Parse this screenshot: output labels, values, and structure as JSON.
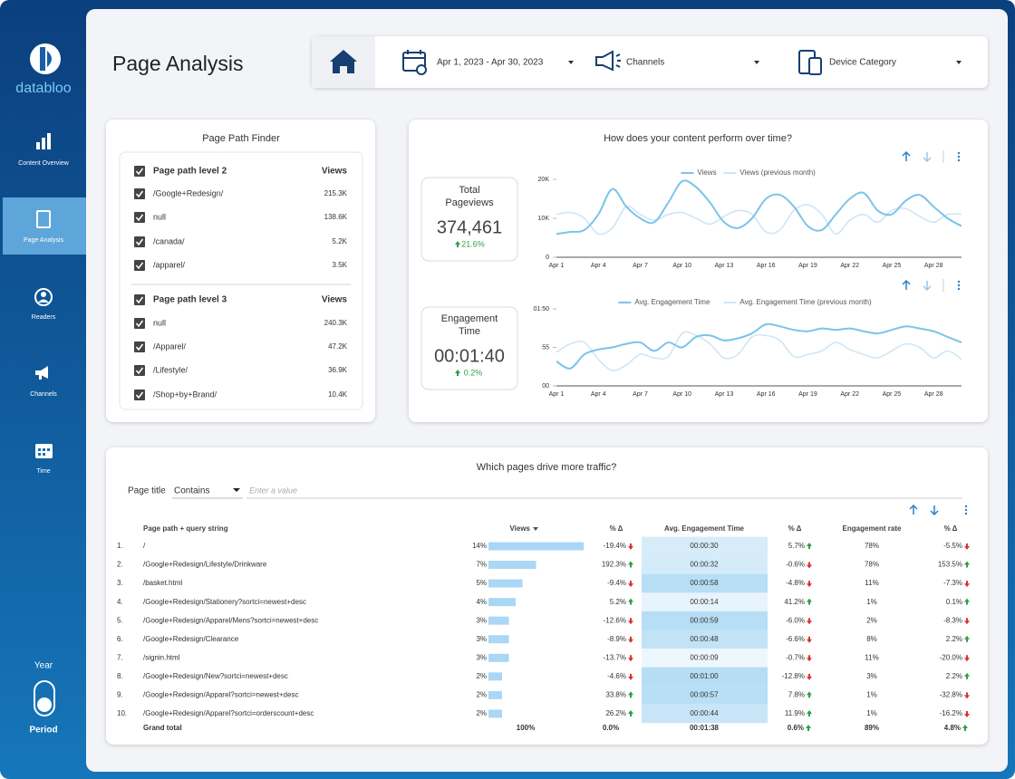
{
  "sidebar": {
    "brand": "databloo",
    "nav": [
      "Content Overview",
      "Page Analysis",
      "Readers",
      "Channels",
      "Time"
    ],
    "active": 1,
    "toggle_top": "Year",
    "toggle_bottom": "Period"
  },
  "header": {
    "title": "Page Analysis",
    "filters": [
      "Apr 1, 2023 - Apr 30, 2023",
      "Channels",
      "Device Category"
    ]
  },
  "path_finder": {
    "title": "Page Path Finder",
    "groups": [
      {
        "header": [
          "Page path level 2",
          "Views"
        ],
        "rows": [
          [
            "/Google+Redesign/",
            "215.3K"
          ],
          [
            "null",
            "138.6K"
          ],
          [
            "/canada/",
            "5.2K"
          ],
          [
            "/apparel/",
            "3.5K"
          ]
        ]
      },
      {
        "header": [
          "Page path level 3",
          "Views"
        ],
        "rows": [
          [
            "null",
            "240.3K"
          ],
          [
            "/Apparel/",
            "47.2K"
          ],
          [
            "/Lifestyle/",
            "36.9K"
          ],
          [
            "/Shop+by+Brand/",
            "10.4K"
          ]
        ]
      }
    ]
  },
  "trend": {
    "title": "How does your content perform over time?",
    "kpis": [
      {
        "label": [
          "Total",
          "Pageviews"
        ],
        "value": "374,461",
        "change": "21.6%"
      },
      {
        "label": [
          "Engagement",
          "Time"
        ],
        "value": "00:01:40",
        "change": "0.2%"
      }
    ],
    "charts": [
      {
        "type": "line",
        "legend": "top",
        "categories": [
          "Apr 1",
          null,
          null,
          "Apr 4",
          null,
          null,
          "Apr 7",
          null,
          null,
          "Apr 10",
          null,
          null,
          "Apr 13",
          null,
          null,
          "Apr 16",
          null,
          null,
          "Apr 19",
          null,
          null,
          "Apr 22",
          null,
          null,
          "Apr 25",
          null,
          null,
          "Apr 28",
          null,
          null
        ],
        "series": [
          {
            "name": "Views",
            "color": "#7cc3ea",
            "values": [
              6000,
              6500,
              7000,
              11000,
              17500,
              13000,
              10000,
              9000,
              14000,
              19500,
              18000,
              14000,
              9000,
              7500,
              10000,
              15000,
              16000,
              13000,
              8000,
              7000,
              11000,
              15000,
              16500,
              12000,
              11000,
              14500,
              16000,
              13000,
              10000,
              8000
            ]
          },
          {
            "name": "Views (previous month)",
            "color": "#cfe6f5",
            "values": [
              11000,
              11500,
              10000,
              6000,
              7500,
              13000,
              11000,
              9500,
              11000,
              11500,
              10000,
              8500,
              10500,
              12000,
              11000,
              6500,
              7000,
              12000,
              13500,
              11000,
              6000,
              9500,
              11000,
              9000,
              12000,
              12500,
              10500,
              9000,
              11000,
              11000
            ]
          }
        ],
        "ylim": [
          0,
          20000
        ],
        "yticks": [
          0,
          {
            "value": 10000,
            "label": "10K"
          },
          {
            "value": 20000,
            "label": "20K"
          }
        ]
      },
      {
        "type": "line",
        "legend": "top",
        "categories": [
          "Apr 1",
          null,
          null,
          "Apr 4",
          null,
          null,
          "Apr 7",
          null,
          null,
          "Apr 10",
          null,
          null,
          "Apr 13",
          null,
          null,
          "Apr 16",
          null,
          null,
          "Apr 19",
          null,
          null,
          "Apr 22",
          null,
          null,
          "Apr 25",
          null,
          null,
          "Apr 28",
          null,
          null
        ],
        "series": [
          {
            "name": "Avg. Engagement Time",
            "color": "#7cc3ea",
            "values": [
              35,
              25,
              45,
              52,
              55,
              60,
              62,
              50,
              62,
              55,
              70,
              72,
              65,
              68,
              75,
              88,
              85,
              80,
              78,
              82,
              80,
              82,
              78,
              75,
              80,
              85,
              82,
              78,
              70,
              62
            ]
          },
          {
            "name": "Avg. Engagement Time (previous month)",
            "color": "#cfe6f5",
            "values": [
              48,
              60,
              62,
              38,
              22,
              30,
              45,
              40,
              42,
              75,
              72,
              60,
              40,
              45,
              70,
              72,
              65,
              42,
              45,
              50,
              62,
              52,
              45,
              40,
              50,
              60,
              55,
              40,
              50,
              38
            ]
          }
        ],
        "ylim": [
          0,
          110
        ],
        "yticks": [
          {
            "value": 0,
            "label": "00"
          },
          55,
          {
            "value": 110,
            "label": "01:50"
          }
        ]
      }
    ]
  },
  "table": {
    "title": "Which pages drive more traffic?",
    "filter": {
      "label": "Page title",
      "operator": "Contains",
      "placeholder": "Enter a value"
    },
    "columns": [
      "Page path + query string",
      "Views",
      "% Δ",
      "Avg. Engagement Time",
      "% Δ",
      "Engagement rate",
      "% Δ"
    ],
    "ranks": [
      "1.",
      "2.",
      "3.",
      "4.",
      "5.",
      "6.",
      "7.",
      "8.",
      "9.",
      "10."
    ],
    "paths": [
      "/",
      "/Google+Redesign/Lifestyle/Drinkware",
      "/basket.html",
      "/Google+Redesign/Stationery?sortci=newest+desc",
      "/Google+Redesign/Apparel/Mens?sortci=newest+desc",
      "/Google+Redesign/Clearance",
      "/signin.html",
      "/Google+Redesign/New?sortci=newest+desc",
      "/Google+Redesign/Apparel?sortci=newest+desc",
      "/Google+Redesign/Apparel?sortci=orderscount+desc"
    ],
    "views_share": [
      14,
      7,
      5,
      4,
      3,
      3,
      3,
      2,
      2,
      2
    ],
    "views_share_labels": [
      "14%",
      "7%",
      "5%",
      "4%",
      "3%",
      "3%",
      "3%",
      "2%",
      "2%",
      "2%"
    ],
    "views_delta": [
      "-19.4%",
      "192.3%",
      "-9.4%",
      "5.2%",
      "-12.6%",
      "-8.9%",
      "-13.7%",
      "-4.6%",
      "33.8%",
      "26.2%"
    ],
    "engagement_time": [
      "00:00:30",
      "00:00:32",
      "00:00:58",
      "00:00:14",
      "00:00:59",
      "00:00:48",
      "00:00:09",
      "00:01:00",
      "00:00:57",
      "00:00:44"
    ],
    "engagement_time_delta": [
      "5.7%",
      "-0.6%",
      "-4.8%",
      "41.2%",
      "-6.0%",
      "-6.6%",
      "-0.7%",
      "-12.8%",
      "7.8%",
      "11.9%"
    ],
    "engagement_rate": [
      "78%",
      "78%",
      "11%",
      "1%",
      "2%",
      "8%",
      "11%",
      "3%",
      "1%",
      "1%"
    ],
    "engagement_rate_delta": [
      "-5.5%",
      "153.5%",
      "-7.3%",
      "0.1%",
      "-8.3%",
      "2.2%",
      "-20.0%",
      "2.2%",
      "-32.8%",
      "-16.2%"
    ],
    "total": [
      "Grand total",
      "100%",
      "0.0%",
      "00:01:38",
      "0.6%",
      "89%",
      "4.8%"
    ]
  }
}
